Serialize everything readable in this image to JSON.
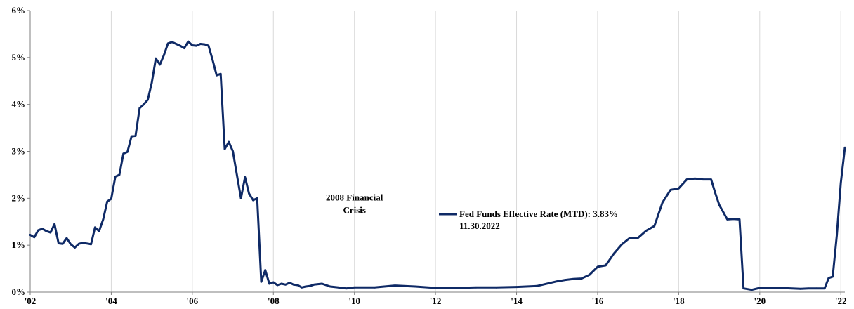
{
  "colors": {
    "series": "#0f2a66",
    "grid": "#d9d9d9",
    "axis": "#7f7f7f",
    "text": "#000000"
  },
  "chart_data": {
    "type": "line",
    "title": "",
    "xlabel": "",
    "ylabel": "",
    "xlim": [
      2002.0,
      2022.1
    ],
    "ylim": [
      0,
      6
    ],
    "x_ticks": [
      2002,
      2004,
      2006,
      2008,
      2010,
      2012,
      2014,
      2016,
      2018,
      2020,
      2022
    ],
    "x_tick_labels": [
      "'02",
      "'04",
      "'06",
      "'08",
      "'10",
      "'12",
      "'14",
      "'16",
      "'18",
      "'20",
      "'22"
    ],
    "y_ticks": [
      0,
      1,
      2,
      3,
      4,
      5,
      6
    ],
    "y_tick_labels": [
      "0%",
      "1%",
      "2%",
      "3%",
      "4%",
      "5%",
      "6%"
    ],
    "grid": "vertical",
    "annotations": [
      {
        "text_lines": [
          "2008 Financial",
          "Crisis"
        ],
        "x": 2010.0,
        "y": 1.95
      }
    ],
    "legend": {
      "position": "center-right",
      "label": "Fed Funds Effective Rate (MTD): 3.83%",
      "sublabel": "11.30.2022"
    },
    "series": [
      {
        "x": [
          2002.0,
          2002.1,
          2002.2,
          2002.3,
          2002.4,
          2002.5,
          2002.6,
          2002.7,
          2002.8,
          2002.9,
          2003.0,
          2003.1,
          2003.2,
          2003.3,
          2003.5,
          2003.6,
          2003.7,
          2003.8,
          2003.9,
          2004.0,
          2004.1,
          2004.2,
          2004.3,
          2004.4,
          2004.5,
          2004.6,
          2004.7,
          2004.8,
          2004.9,
          2005.0,
          2005.1,
          2005.2,
          2005.3,
          2005.4,
          2005.5,
          2005.6,
          2005.7,
          2005.8,
          2005.9,
          2006.0,
          2006.1,
          2006.2,
          2006.3,
          2006.4,
          2006.5,
          2006.6,
          2006.7,
          2006.8,
          2006.9,
          2007.0,
          2007.1,
          2007.2,
          2007.3,
          2007.4,
          2007.5,
          2007.6,
          2007.7,
          2007.8,
          2007.9,
          2008.0,
          2008.1,
          2008.2,
          2008.3,
          2008.4,
          2008.5,
          2008.6,
          2008.7,
          2008.8,
          2008.9,
          2009.0,
          2009.2,
          2009.4,
          2009.6,
          2009.8,
          2010.0,
          2010.5,
          2011.0,
          2011.5,
          2012.0,
          2012.5,
          2013.0,
          2013.5,
          2014.0,
          2014.5,
          2015.0,
          2015.2,
          2015.4,
          2015.6,
          2015.8,
          2016.0,
          2016.2,
          2016.4,
          2016.6,
          2016.8,
          2017.0,
          2017.2,
          2017.4,
          2017.6,
          2017.8,
          2018.0,
          2018.2,
          2018.4,
          2018.6,
          2018.8,
          2018.9,
          2019.0,
          2019.2,
          2019.35,
          2019.5,
          2019.6,
          2019.8,
          2020.0,
          2020.5,
          2021.0,
          2021.2,
          2021.4,
          2021.6,
          2021.7,
          2021.8,
          2021.9,
          2022.0,
          2022.1
        ],
        "y": [
          1.22,
          1.17,
          1.32,
          1.35,
          1.3,
          1.27,
          1.45,
          1.04,
          1.03,
          1.15,
          1.02,
          0.95,
          1.03,
          1.05,
          1.02,
          1.38,
          1.3,
          1.55,
          1.93,
          1.99,
          2.46,
          2.5,
          2.95,
          2.99,
          3.32,
          3.33,
          3.92,
          4.0,
          4.1,
          4.46,
          4.98,
          4.85,
          5.05,
          5.3,
          5.33,
          5.29,
          5.25,
          5.2,
          5.34,
          5.26,
          5.25,
          5.29,
          5.28,
          5.25,
          4.95,
          4.62,
          4.65,
          3.05,
          3.2,
          3.0,
          2.5,
          2.0,
          2.45,
          2.1,
          1.96,
          2.0,
          0.22,
          0.47,
          0.18,
          0.21,
          0.15,
          0.18,
          0.16,
          0.2,
          0.16,
          0.15,
          0.1,
          0.12,
          0.13,
          0.16,
          0.18,
          0.12,
          0.1,
          0.08,
          0.1,
          0.1,
          0.14,
          0.12,
          0.09,
          0.09,
          0.1,
          0.1,
          0.11,
          0.13,
          0.23,
          0.26,
          0.28,
          0.29,
          0.37,
          0.54,
          0.57,
          0.82,
          1.02,
          1.16,
          1.16,
          1.31,
          1.41,
          1.91,
          2.18,
          2.21,
          2.4,
          2.42,
          2.4,
          2.4,
          2.12,
          1.86,
          1.55,
          1.56,
          1.55,
          0.08,
          0.05,
          0.09,
          0.09,
          0.07,
          0.08,
          0.08,
          0.08,
          0.3,
          0.33,
          1.21,
          2.33,
          3.08
        ],
        "note": ""
      }
    ]
  }
}
